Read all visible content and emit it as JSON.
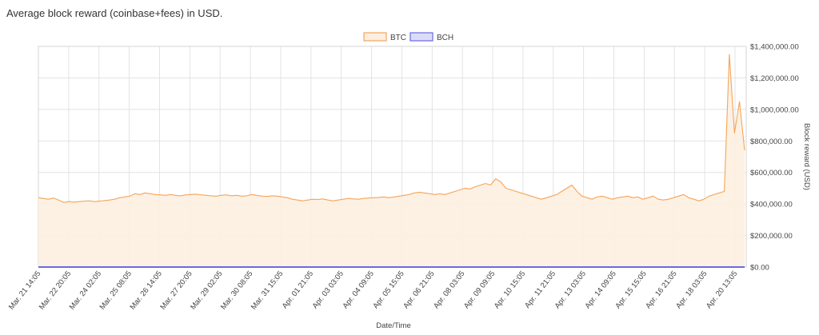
{
  "page": {
    "title": "Average block reward (coinbase+fees) in USD."
  },
  "chart_data": {
    "type": "area",
    "title": "Average block reward (coinbase+fees) in USD.",
    "xlabel": "Date/Time",
    "ylabel": "Block reward (USD)",
    "ylim": [
      0,
      1400000
    ],
    "y_ticks": [
      0,
      200000,
      400000,
      600000,
      800000,
      1000000,
      1200000,
      1400000
    ],
    "y_tick_labels": [
      "$0.00",
      "$200,000.00",
      "$400,000.00",
      "$600,000.00",
      "$800,000.00",
      "$1,000,000.00",
      "$1,200,000.00",
      "$1,400,000.00"
    ],
    "x_tick_labels": [
      "Mar. 21 14:05",
      "Mar. 22 20:05",
      "Mar. 24 02:05",
      "Mar. 25 08:05",
      "Mar. 26 14:05",
      "Mar. 27 20:05",
      "Mar. 29 02:05",
      "Mar. 30 08:05",
      "Mar. 31 15:05",
      "Apr. 01 21:05",
      "Apr. 03 03:05",
      "Apr. 04 09:05",
      "Apr. 05 15:05",
      "Apr. 06 21:05",
      "Apr. 08 03:05",
      "Apr. 09 09:05",
      "Apr. 10 15:05",
      "Apr. 11 21:05",
      "Apr. 13 03:05",
      "Apr. 14 09:05",
      "Apr. 15 15:05",
      "Apr. 16 21:05",
      "Apr. 18 03:05",
      "Apr. 20 13:05"
    ],
    "grid": true,
    "legend_position": "top-center",
    "series": [
      {
        "name": "BTC",
        "color": "#f5a55a",
        "fill": "#fdefe0",
        "values": [
          440000,
          435000,
          430000,
          438000,
          425000,
          410000,
          415000,
          412000,
          415000,
          418000,
          420000,
          415000,
          418000,
          422000,
          425000,
          430000,
          440000,
          445000,
          450000,
          465000,
          460000,
          470000,
          465000,
          460000,
          458000,
          455000,
          460000,
          455000,
          452000,
          458000,
          460000,
          462000,
          458000,
          455000,
          452000,
          450000,
          455000,
          458000,
          452000,
          455000,
          450000,
          452000,
          460000,
          455000,
          450000,
          448000,
          452000,
          450000,
          445000,
          440000,
          430000,
          425000,
          420000,
          425000,
          430000,
          428000,
          432000,
          425000,
          420000,
          425000,
          430000,
          435000,
          432000,
          430000,
          435000,
          438000,
          440000,
          442000,
          445000,
          440000,
          445000,
          450000,
          455000,
          460000,
          470000,
          475000,
          470000,
          465000,
          460000,
          465000,
          460000,
          470000,
          480000,
          490000,
          500000,
          495000,
          510000,
          520000,
          530000,
          520000,
          560000,
          540000,
          500000,
          490000,
          480000,
          470000,
          460000,
          450000,
          440000,
          430000,
          440000,
          450000,
          460000,
          480000,
          500000,
          520000,
          480000,
          450000,
          440000,
          430000,
          445000,
          450000,
          440000,
          430000,
          440000,
          445000,
          450000,
          440000,
          445000,
          430000,
          440000,
          450000,
          430000,
          425000,
          430000,
          440000,
          450000,
          460000,
          440000,
          430000,
          420000,
          430000,
          450000,
          460000,
          470000,
          480000,
          1350000,
          850000,
          1050000,
          740000
        ]
      },
      {
        "name": "BCH",
        "color": "#6a6ae0",
        "fill": "#dcdcf8",
        "values": [
          0,
          0,
          0,
          0,
          0,
          0,
          0,
          0,
          0,
          0,
          0,
          0,
          0,
          0,
          0,
          0,
          0,
          0,
          0,
          0,
          0,
          0,
          0,
          0,
          0,
          0,
          0,
          0,
          0,
          0,
          0,
          0,
          0,
          0,
          0,
          0,
          0,
          0,
          0,
          0,
          0,
          0,
          0,
          0,
          0,
          0,
          0,
          0,
          0,
          0,
          0,
          0,
          0,
          0,
          0,
          0,
          0,
          0,
          0,
          0,
          0,
          0,
          0,
          0,
          0,
          0,
          0,
          0,
          0,
          0,
          0,
          0,
          0,
          0,
          0,
          0,
          0,
          0,
          0,
          0,
          0,
          0,
          0,
          0,
          0,
          0,
          0,
          0,
          0,
          0,
          0,
          0,
          0,
          0,
          0,
          0,
          0,
          0,
          0,
          0,
          0,
          0,
          0,
          0,
          0,
          0,
          0,
          0,
          0,
          0,
          0,
          0,
          0,
          0,
          0,
          0,
          0,
          0,
          0,
          0,
          0,
          0,
          0,
          0,
          0,
          0,
          0,
          0,
          0,
          0,
          0,
          0,
          0,
          0,
          0,
          0,
          0,
          0,
          0,
          0
        ]
      }
    ]
  }
}
